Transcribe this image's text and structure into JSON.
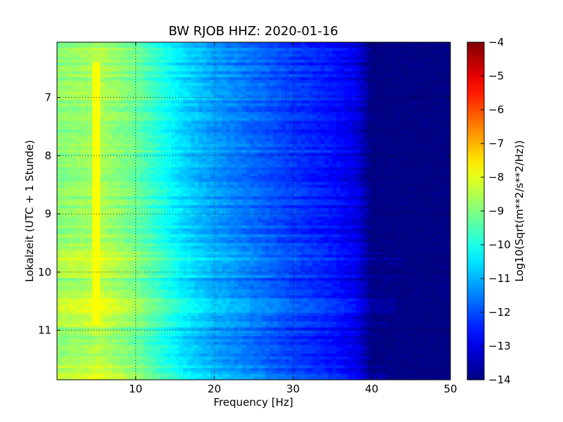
{
  "chart_data": {
    "type": "heatmap",
    "title": "BW RJOB HHZ: 2020-01-16",
    "xlabel": "Frequency [Hz]",
    "ylabel": "Lokalzeit (UTC + 1 Stunde)",
    "xlim": [
      0,
      50
    ],
    "ylim": [
      6.05,
      11.85
    ],
    "y_inverted": true,
    "x_ticks": [
      10,
      20,
      30,
      40,
      50
    ],
    "y_ticks": [
      7,
      8,
      9,
      10,
      11
    ],
    "grid": true,
    "grid_style": "dotted",
    "colormap": "jet",
    "colorbar": {
      "label": "Log10(Sqrt(m**2/s**2/Hz))",
      "range": [
        -14,
        -4
      ],
      "ticks": [
        -4,
        -5,
        -6,
        -7,
        -8,
        -9,
        -10,
        -11,
        -12,
        -13,
        -14
      ]
    },
    "base_profile": {
      "frequency_hz": [
        0,
        4,
        5,
        8,
        10,
        13,
        16,
        20,
        25,
        30,
        35,
        38,
        40,
        50
      ],
      "log10_psd": [
        -8.9,
        -8.7,
        -8.5,
        -8.9,
        -9.2,
        -9.9,
        -10.6,
        -11.2,
        -11.7,
        -12.2,
        -12.6,
        -13.0,
        -14.0,
        -14.0
      ]
    },
    "spectral_lines": [
      {
        "frequency_hz": 5.0,
        "log10_psd": -7.8,
        "from_hour": 6.4,
        "to_hour": 10.9
      }
    ],
    "noisy_periods": [
      {
        "from_hour": 9.65,
        "to_hour": 10.1,
        "log10_psd_offset": 0.6,
        "max_frequency_hz": 44
      },
      {
        "from_hour": 10.35,
        "to_hour": 10.95,
        "log10_psd_offset": 0.5,
        "max_frequency_hz": 43
      },
      {
        "from_hour": 11.5,
        "to_hour": 11.85,
        "log10_psd_offset": 0.4,
        "max_frequency_hz": 42
      }
    ]
  }
}
